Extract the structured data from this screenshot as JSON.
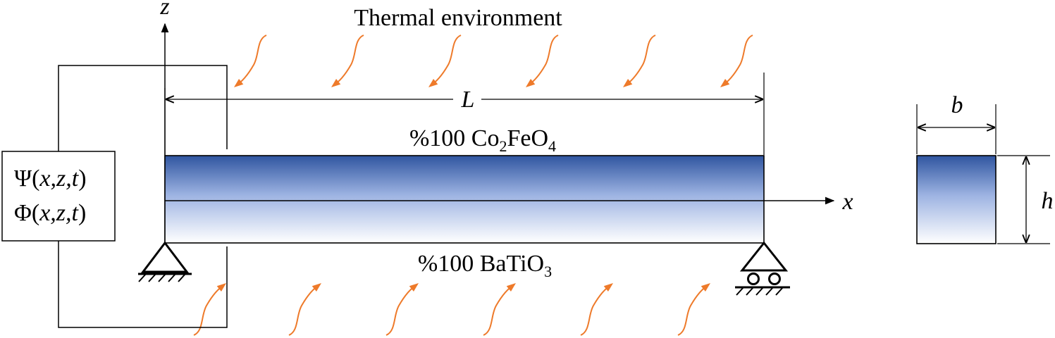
{
  "title": "Thermal environment",
  "axes": {
    "x": "x",
    "z": "z"
  },
  "dimensions": {
    "length": "L",
    "width": "b",
    "height": "h"
  },
  "materials": {
    "top": {
      "prefix": "%100 Co",
      "sub1": "2",
      "mid": "FeO",
      "sub2": "4"
    },
    "bottom": {
      "prefix": "%100 BaTiO",
      "sub": "3"
    }
  },
  "potentials": {
    "psi": {
      "symbol": "Ψ",
      "args": "x,z,t"
    },
    "phi": {
      "symbol": "Φ",
      "args": "x,z,t"
    }
  },
  "colors": {
    "beam_top": "#2f55a0",
    "beam_mid": "#9db3e2",
    "beam_bottom": "#ffffff",
    "heat_arrow": "#ee7a2a",
    "line": "#000000"
  }
}
